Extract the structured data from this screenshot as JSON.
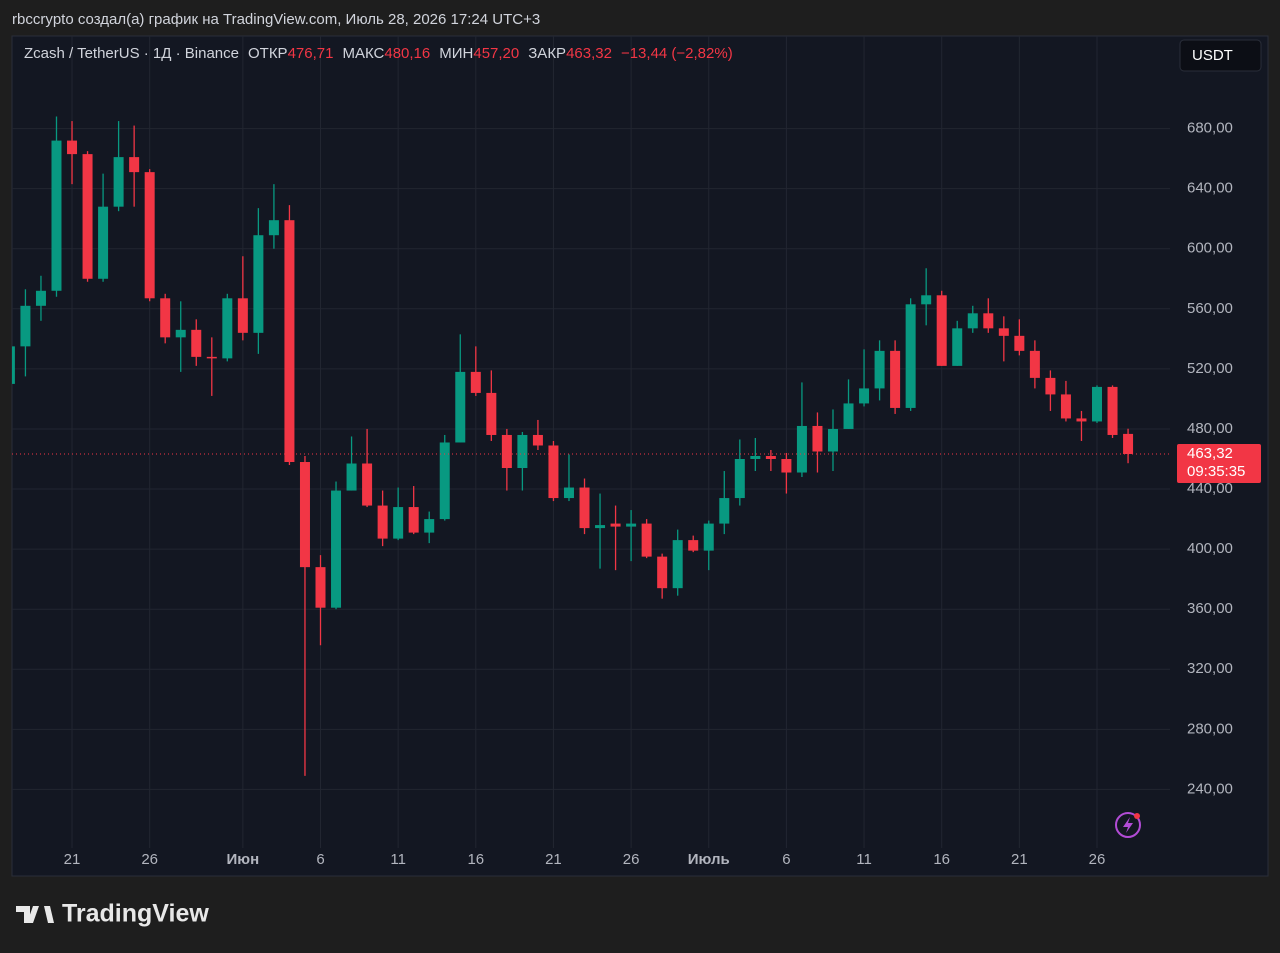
{
  "header": {
    "attribution": "rbccrypto создал(а) график на TradingView.com, Июль 28, 2026 17:24 UTC+3",
    "logo": "TradingView"
  },
  "chart_data": {
    "type": "candlestick",
    "currency_button": "USDT",
    "legend": {
      "symbol": "Zcash / TetherUS · 1Д · Binance",
      "items": [
        {
          "label": "ОТКР",
          "value": "476,71"
        },
        {
          "label": "МАКС",
          "value": "480,16"
        },
        {
          "label": "МИН",
          "value": "457,20"
        },
        {
          "label": "ЗАКР",
          "value": "463,32"
        }
      ],
      "change": "−13,44 (−2,82%)"
    },
    "price_label": "463,32",
    "countdown": "09:35:35",
    "up_color": "#089981",
    "down_color": "#f23645",
    "categories": [
      null,
      null,
      null,
      null,
      "21",
      null,
      null,
      null,
      null,
      "26",
      null,
      null,
      null,
      null,
      null,
      "Июн",
      null,
      null,
      null,
      null,
      "6",
      null,
      null,
      null,
      null,
      "11",
      null,
      null,
      null,
      null,
      "16",
      null,
      null,
      null,
      null,
      "21",
      null,
      null,
      null,
      null,
      "26",
      null,
      null,
      null,
      null,
      "Июль",
      null,
      null,
      null,
      null,
      "6",
      null,
      null,
      null,
      null,
      "11",
      null,
      null,
      null,
      null,
      "16",
      null,
      null,
      null,
      null,
      "21",
      null,
      null,
      null,
      null,
      "26",
      null,
      null
    ],
    "open": [
      510,
      535,
      562,
      572,
      672,
      663,
      580,
      628,
      661,
      651,
      567,
      541,
      546,
      528,
      527,
      567,
      544,
      609,
      619,
      458,
      388,
      361,
      439,
      457,
      429,
      407,
      428,
      411,
      420,
      471,
      518,
      504,
      476,
      454,
      476,
      469,
      434,
      441,
      414,
      417,
      415,
      417,
      395,
      374,
      406,
      399,
      417,
      434,
      460,
      462,
      460,
      451,
      482,
      465,
      480,
      497,
      507,
      532,
      494,
      563,
      569,
      522,
      547,
      557,
      547,
      542,
      532,
      514,
      503,
      487,
      485,
      508,
      476.71
    ],
    "high": [
      540,
      573,
      582,
      688,
      685,
      665,
      650,
      685,
      682,
      653,
      570,
      565,
      553,
      541,
      570,
      595,
      627,
      643,
      629,
      462,
      396,
      445,
      475,
      480,
      439,
      441,
      442,
      425,
      476,
      543,
      535,
      519,
      480,
      478,
      486,
      472,
      463,
      447,
      437,
      429,
      426,
      420,
      397,
      413,
      409,
      419,
      452,
      473,
      474,
      466,
      464,
      511,
      491,
      493,
      513,
      533,
      539,
      539,
      567,
      587,
      572,
      552,
      562,
      567,
      555,
      553,
      539,
      519,
      512,
      492,
      509,
      509,
      480.16
    ],
    "low": [
      510,
      515,
      552,
      568,
      643,
      578,
      578,
      625,
      628,
      565,
      537,
      518,
      522,
      502,
      525,
      539,
      530,
      600,
      456,
      249,
      336,
      360,
      439,
      428,
      402,
      406,
      410,
      404,
      419,
      471,
      502,
      472,
      439,
      439,
      466,
      432,
      432,
      410,
      387,
      386,
      392,
      394,
      367,
      369,
      398,
      386,
      410,
      429,
      452,
      452,
      437,
      448,
      451,
      452,
      480,
      495,
      499,
      490,
      492,
      549,
      522,
      522,
      544,
      544,
      525,
      529,
      507,
      492,
      485,
      472,
      484,
      474,
      457.2
    ],
    "close": [
      535,
      562,
      572,
      672,
      663,
      580,
      628,
      661,
      651,
      567,
      541,
      546,
      528,
      527,
      567,
      544,
      609,
      619,
      458,
      388,
      361,
      439,
      457,
      429,
      407,
      428,
      411,
      420,
      471,
      518,
      504,
      476,
      454,
      476,
      469,
      434,
      441,
      414,
      416,
      415,
      417,
      395,
      374,
      406,
      399,
      417,
      434,
      460,
      462,
      460,
      451,
      482,
      465,
      480,
      497,
      507,
      532,
      494,
      563,
      569,
      522,
      547,
      557,
      547,
      542,
      532,
      514,
      503,
      487,
      485,
      508,
      476,
      463.32
    ],
    "ylim": [
      203,
      719
    ],
    "yticks": [
      {
        "value": 240,
        "label": "240,00"
      },
      {
        "value": 280,
        "label": "280,00"
      },
      {
        "value": 320,
        "label": "320,00"
      },
      {
        "value": 360,
        "label": "360,00"
      },
      {
        "value": 400,
        "label": "400,00"
      },
      {
        "value": 440,
        "label": "440,00"
      },
      {
        "value": 480,
        "label": "480,00"
      },
      {
        "value": 520,
        "label": "520,00"
      },
      {
        "value": 560,
        "label": "560,00"
      },
      {
        "value": 600,
        "label": "600,00"
      },
      {
        "value": 640,
        "label": "640,00"
      },
      {
        "value": 680,
        "label": "680,00"
      }
    ],
    "grid": true
  }
}
